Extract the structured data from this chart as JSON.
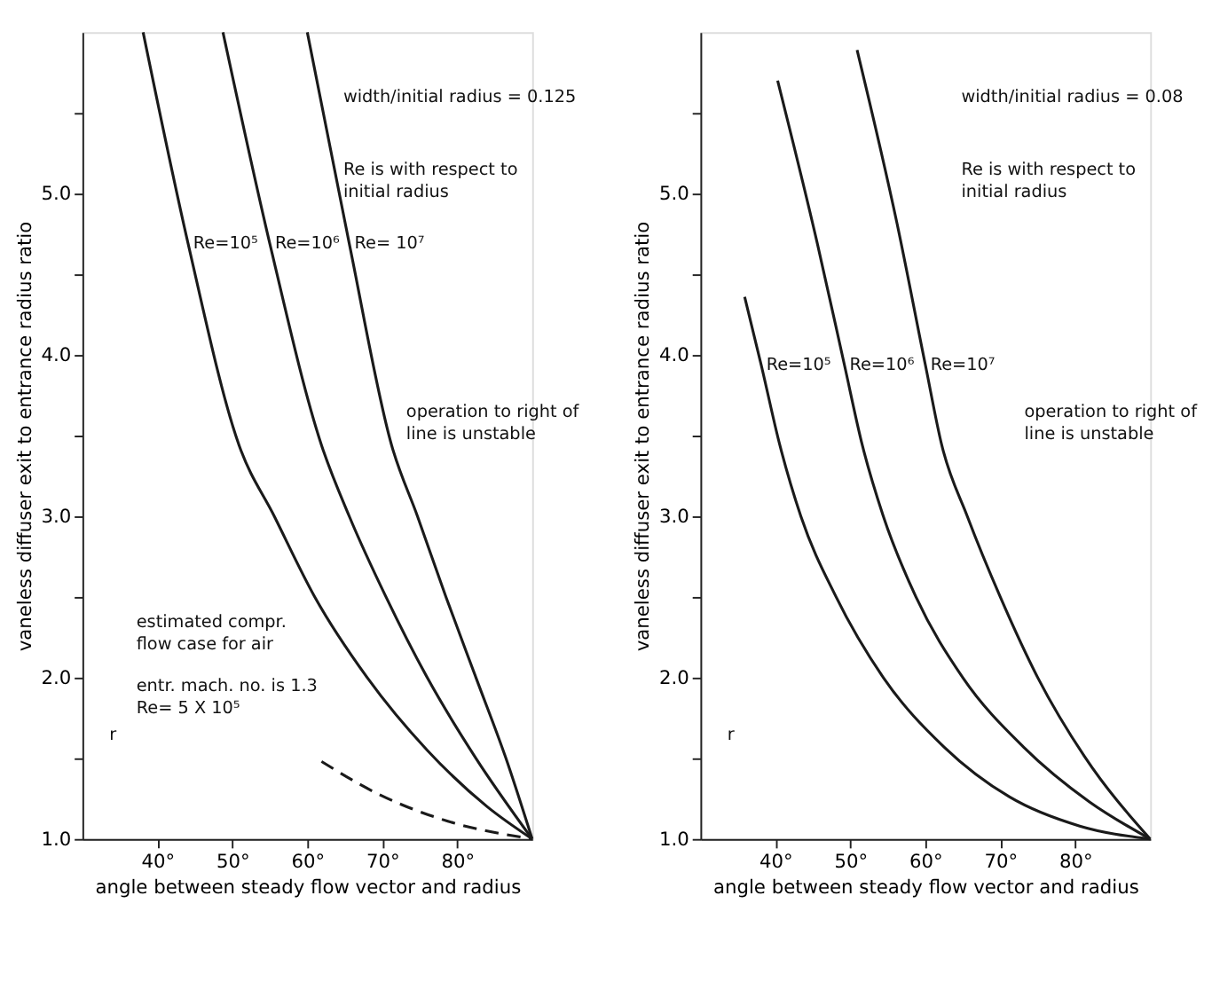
{
  "chart_data": [
    {
      "type": "line",
      "xlabel": "angle between steady flow vector and radius",
      "ylabel": "vaneless diffuser exit to entrance radius ratio",
      "xlim": [
        30,
        90
      ],
      "ylim": [
        1,
        6
      ],
      "xticks": [
        {
          "value": 40,
          "label": "40°"
        },
        {
          "value": 50,
          "label": "50°"
        },
        {
          "value": 60,
          "label": "60°"
        },
        {
          "value": 70,
          "label": "70°"
        },
        {
          "value": 80,
          "label": "80°"
        }
      ],
      "yticks": [
        {
          "value": 1,
          "label": "1.0"
        },
        {
          "value": 1.5,
          "label": null
        },
        {
          "value": 2,
          "label": "2.0"
        },
        {
          "value": 2.5,
          "label": null
        },
        {
          "value": 3,
          "label": "3.0"
        },
        {
          "value": 3.5,
          "label": null
        },
        {
          "value": 4,
          "label": "4.0"
        },
        {
          "value": 4.5,
          "label": null
        },
        {
          "value": 5,
          "label": "5.0"
        },
        {
          "value": 5.5,
          "label": null
        }
      ],
      "grid": false,
      "series": [
        {
          "color": "#1a1a1a",
          "line_style": "solid",
          "x": [
            38.1,
            44.1,
            50.9,
            55.6,
            61,
            68,
            76,
            84,
            90
          ],
          "values": [
            6.0,
            4.69,
            3.44,
            3.0,
            2.5,
            2.0,
            1.55,
            1.2,
            1.0
          ]
        },
        {
          "color": "#1a1a1a",
          "line_style": "solid",
          "x": [
            48.75,
            55,
            61.9,
            65.6,
            70.5,
            76,
            82.5,
            90
          ],
          "values": [
            6.0,
            4.69,
            3.44,
            3.0,
            2.5,
            2.0,
            1.5,
            1.0
          ]
        },
        {
          "color": "#1a1a1a",
          "line_style": "solid",
          "x": [
            60,
            65.6,
            71.25,
            74.7,
            78.5,
            82.5,
            86.5,
            90
          ],
          "values": [
            6.0,
            4.69,
            3.44,
            3.0,
            2.5,
            2.0,
            1.5,
            1.0
          ]
        },
        {
          "color": "#1a1a1a",
          "line_style": "dashed",
          "x": [
            61.9,
            69.4,
            78.75,
            90
          ],
          "values": [
            1.48,
            1.28,
            1.11,
            1.0
          ]
        }
      ],
      "annotations": [
        "width/initial radius = 0.125",
        "Re is with respect to\ninitial radius",
        "operation to right of\nline is unstable",
        "r",
        "estimated compr.\nflow case for air",
        "entr. mach. no. is 1.3\nRe= 5 X 10⁵",
        {
          "text": "Re=10⁵",
          "x": 44.1,
          "y": 4.69
        },
        {
          "text": "Re=10⁶",
          "x": 55,
          "y": 4.69
        },
        {
          "text": "Re= 10⁷",
          "x": 65.6,
          "y": 4.69
        }
      ]
    },
    {
      "type": "line",
      "xlabel": "angle between steady flow vector and radius",
      "ylabel": "vaneless diffuser exit to entrance radius ratio",
      "xlim": [
        30,
        90
      ],
      "ylim": [
        1,
        6
      ],
      "xticks": [
        {
          "value": 40,
          "label": "40°"
        },
        {
          "value": 50,
          "label": "50°"
        },
        {
          "value": 60,
          "label": "60°"
        },
        {
          "value": 70,
          "label": "70°"
        },
        {
          "value": 80,
          "label": "80°"
        }
      ],
      "yticks": [
        {
          "value": 1,
          "label": "1.0"
        },
        {
          "value": 1.5,
          "label": null
        },
        {
          "value": 2,
          "label": "2.0"
        },
        {
          "value": 2.5,
          "label": null
        },
        {
          "value": 3,
          "label": "3.0"
        },
        {
          "value": 3.5,
          "label": null
        },
        {
          "value": 4,
          "label": "4.0"
        },
        {
          "value": 4.5,
          "label": null
        },
        {
          "value": 5,
          "label": "5.0"
        },
        {
          "value": 5.5,
          "label": null
        }
      ],
      "grid": false,
      "series": [
        {
          "color": "#1a1a1a",
          "line_style": "solid",
          "x": [
            35.9,
            38.1,
            40.6,
            43.4,
            48.1,
            54.4,
            62.5,
            71.25,
            80.6,
            90
          ],
          "values": [
            4.36,
            3.94,
            3.44,
            3.0,
            2.5,
            2.0,
            1.57,
            1.26,
            1.08,
            1.0
          ]
        },
        {
          "color": "#1a1a1a",
          "line_style": "solid",
          "x": [
            40.3,
            45.6,
            49.2,
            51.6,
            54.4,
            58.75,
            65,
            73.1,
            81.9,
            90
          ],
          "values": [
            5.7,
            4.69,
            3.94,
            3.44,
            3.0,
            2.5,
            2.0,
            1.57,
            1.23,
            1.0
          ]
        },
        {
          "color": "#1a1a1a",
          "line_style": "solid",
          "x": [
            50.9,
            56.25,
            60.0,
            62.2,
            65.6,
            70,
            75,
            81.25,
            90
          ],
          "values": [
            5.89,
            4.81,
            3.94,
            3.44,
            3.0,
            2.5,
            2.0,
            1.51,
            1.0
          ]
        }
      ],
      "annotations": [
        "width/initial radius = 0.08",
        "Re is with respect to\ninitial radius",
        "operation to right of\nline is unstable",
        "r",
        {
          "text": "Re=10⁵",
          "x": 38.1,
          "y": 3.94
        },
        {
          "text": "Re=10⁶",
          "x": 49.2,
          "y": 3.94
        },
        {
          "text": "Re=10⁷",
          "x": 60.0,
          "y": 3.94
        }
      ]
    }
  ]
}
